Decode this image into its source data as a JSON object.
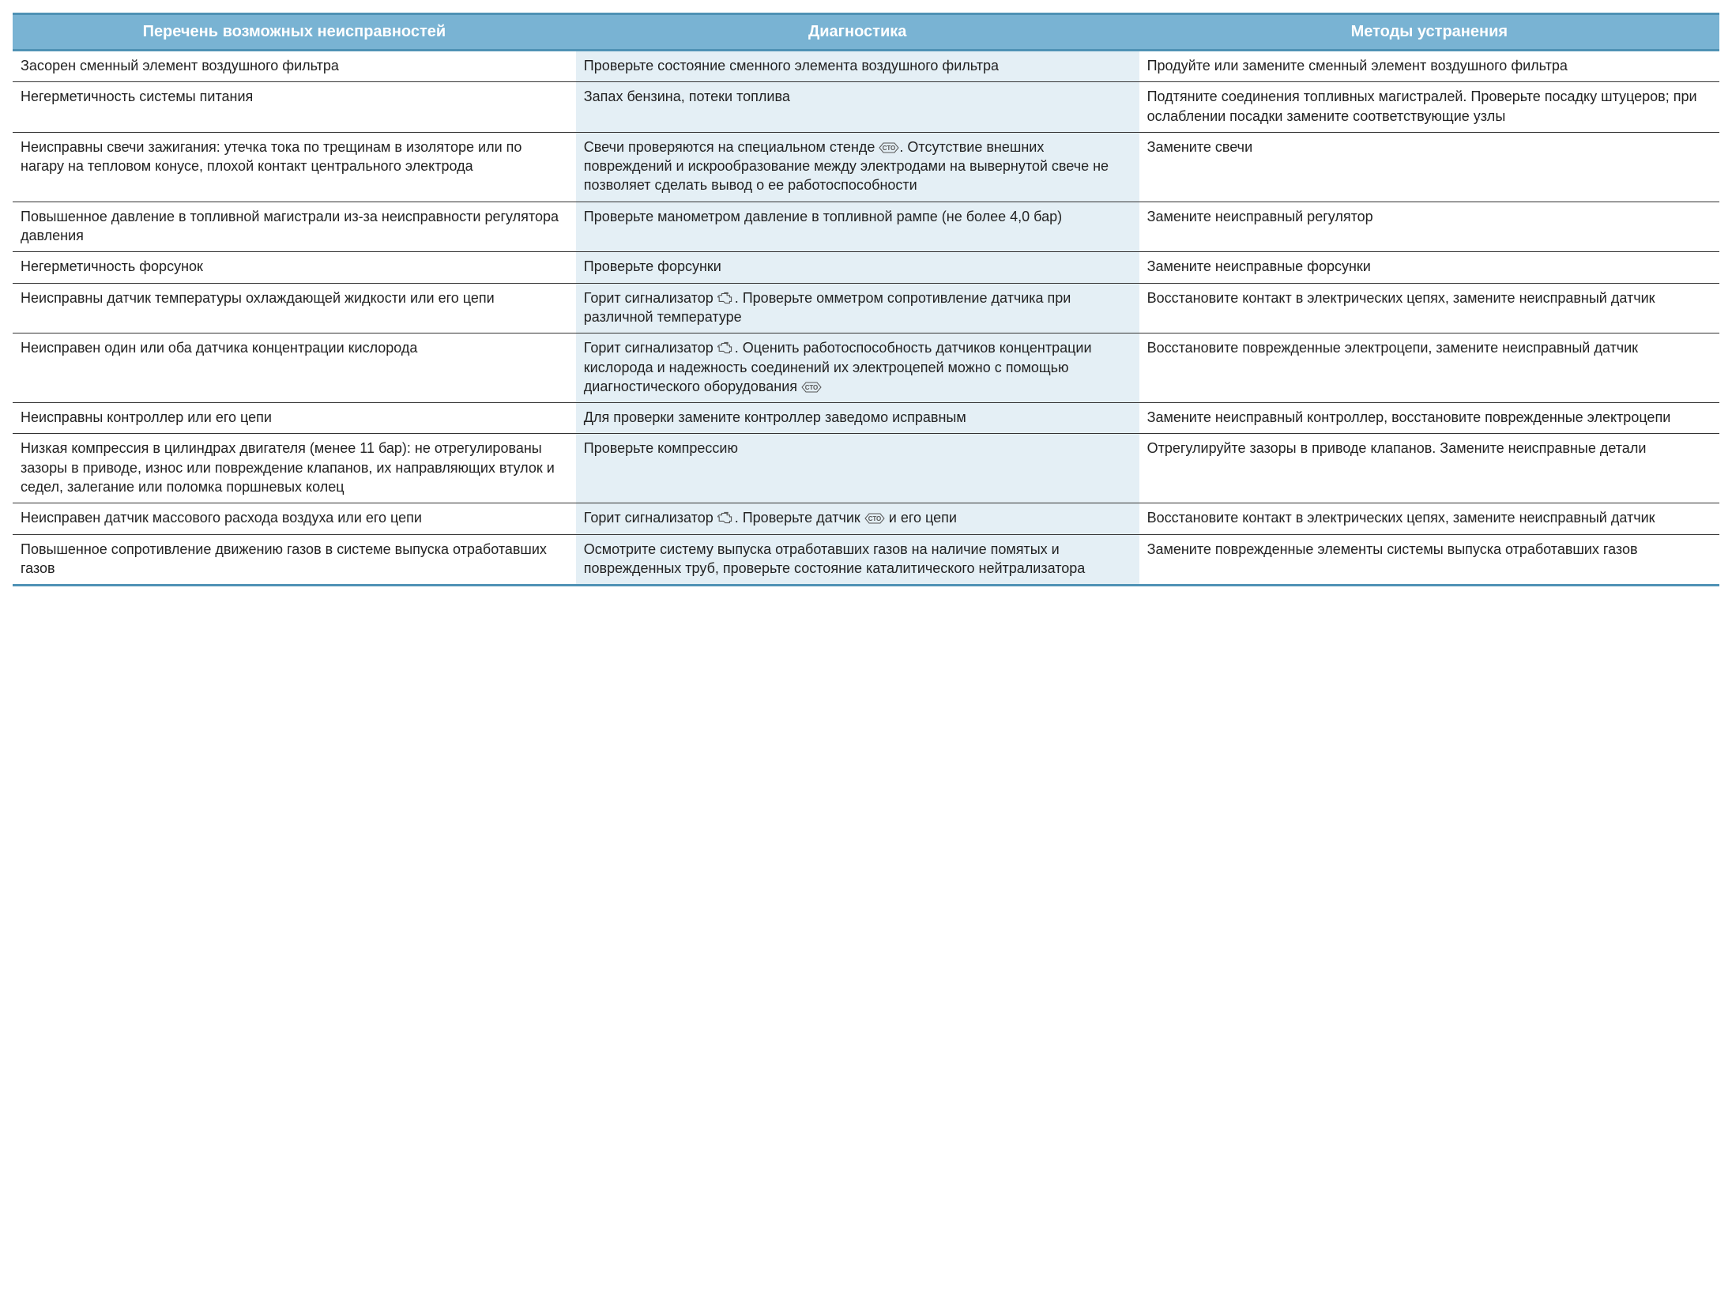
{
  "table": {
    "header_bg": "#79b3d3",
    "header_border": "#4f92b5",
    "header_text_color": "#ffffff",
    "diag_bg": "#e4eff5",
    "row_border": "#333333",
    "font_family": "Arial",
    "body_fontsize": 18,
    "header_fontsize": 20,
    "columns": [
      "Перечень возможных неисправностей",
      "Диагностика",
      "Методы устранения"
    ],
    "column_widths_pct": [
      33,
      33,
      34
    ],
    "icons": {
      "engine": "engine-icon",
      "sto": "sto-icon"
    },
    "rows": [
      {
        "fault": "Засорен сменный элемент воздушного фильтра",
        "diag": [
          {
            "t": "Проверьте состояние сменного элемента воздушного фильтра"
          }
        ],
        "fix": "Продуйте или замените сменный элемент воздушного фильтра"
      },
      {
        "fault": "Негерметичность системы питания",
        "diag": [
          {
            "t": "Запах бензина, потеки топлива"
          }
        ],
        "fix": "Подтяните соединения топливных магистралей. Проверьте посадку штуцеров; при ослаблении посадки замените соответствующие узлы"
      },
      {
        "fault": "Неисправны свечи зажигания: утечка тока по трещинам в изоляторе или по нагару на тепловом конусе, плохой контакт центрального электрода",
        "diag": [
          {
            "t": "Свечи проверяются на специальном стенде "
          },
          {
            "icon": "sto"
          },
          {
            "t": ". Отсутствие внешних повреждений и искрообразование между электродами на вывернутой свече не позволяет сделать вывод о ее работоспособности"
          }
        ],
        "fix": "Замените свечи"
      },
      {
        "fault": "Повышенное давление в топливной магистрали из-за неисправности регулятора давления",
        "diag": [
          {
            "t": "Проверьте манометром давление в топливной рампе (не более 4,0 бар)"
          }
        ],
        "fix": "Замените неисправный регулятор"
      },
      {
        "fault": "Негерметичность форсунок",
        "diag": [
          {
            "t": "Проверьте форсунки"
          }
        ],
        "fix": "Замените неисправные форсунки"
      },
      {
        "fault": "Неисправны датчик температуры охлаждающей жидкости или его цепи",
        "diag": [
          {
            "t": "Горит сигнализатор "
          },
          {
            "icon": "engine"
          },
          {
            "t": ". Проверьте омметром сопротивление датчика при различной температуре"
          }
        ],
        "fix": "Восстановите контакт в электрических цепях, замените неисправный датчик"
      },
      {
        "fault": "Неисправен один или оба датчика концентрации кислорода",
        "diag": [
          {
            "t": "Горит сигнализатор "
          },
          {
            "icon": "engine"
          },
          {
            "t": ". Оценить работоспособность датчиков концентрации кислорода и надежность соединений их электроцепей можно с помощью диагностического оборудования "
          },
          {
            "icon": "sto"
          }
        ],
        "fix": "Восстановите поврежденные электроцепи, замените неисправный датчик"
      },
      {
        "fault": "Неисправны контроллер или его цепи",
        "diag": [
          {
            "t": "Для проверки замените контроллер заведомо исправным"
          }
        ],
        "fix": "Замените неисправный контроллер, восстановите поврежденные электроцепи"
      },
      {
        "fault": "Низкая компрессия в цилиндрах двигателя (менее 11 бар): не отрегулированы зазоры в приводе, износ или повреждение клапанов, их направляющих втулок и седел, залегание или поломка поршневых колец",
        "diag": [
          {
            "t": "Проверьте компрессию"
          }
        ],
        "fix": "Отрегулируйте зазоры в приводе клапанов. Замените неисправные детали"
      },
      {
        "fault": "Неисправен датчик массового расхода воздуха или его цепи",
        "diag": [
          {
            "t": "Горит сигнализатор "
          },
          {
            "icon": "engine"
          },
          {
            "t": ". Проверьте датчик "
          },
          {
            "icon": "sto"
          },
          {
            "t": " и его цепи"
          }
        ],
        "fix": "Восстановите контакт в электрических цепях, замените неисправный датчик"
      },
      {
        "fault": "Повышенное сопротивление движению газов в системе выпуска отработавших газов",
        "diag": [
          {
            "t": "Осмотрите систему выпуска отработавших газов на наличие помятых и поврежденных труб, проверьте состояние каталитического нейтрализатора"
          }
        ],
        "fix": "Замените поврежденные элементы системы выпуска отработавших газов"
      }
    ]
  }
}
